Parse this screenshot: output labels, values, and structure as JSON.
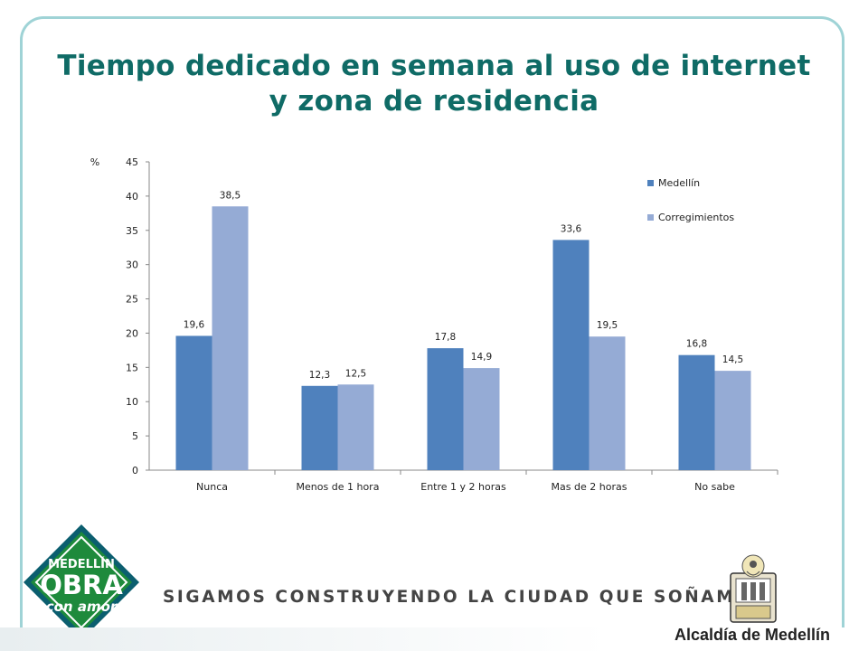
{
  "slide": {
    "title_line1": "Tiempo dedicado en semana al uso de internet",
    "title_line2": "y zona de residencia",
    "slogan": "SIGAMOS CONSTRUYENDO LA CIUDAD QUE SOÑAMOS",
    "logo_line1": "MEDELLÍN",
    "logo_line2": "OBRA",
    "logo_line3": "con amor",
    "alcaldia": "Alcaldía de Medellín"
  },
  "colors": {
    "title": "#0f6b66",
    "medellin": "#4f81bd",
    "corregimientos": "#95abd5",
    "logo_green": "#1e8a3c",
    "logo_dark": "#0b5e6f"
  },
  "chart_data": {
    "type": "bar",
    "ylabel": "%",
    "ylim": [
      0,
      45
    ],
    "yticks": [
      0,
      5,
      10,
      15,
      20,
      25,
      30,
      35,
      40,
      45
    ],
    "grid": false,
    "legend_position": "top-right",
    "categories": [
      "Nunca",
      "Menos de 1 hora",
      "Entre 1 y 2 horas",
      "Mas de 2 horas",
      "No sabe"
    ],
    "series": [
      {
        "name": "Medellín",
        "values": [
          19.6,
          12.3,
          17.8,
          33.6,
          16.8
        ],
        "labels": [
          "19,6",
          "12,3",
          "17,8",
          "33,6",
          "16,8"
        ]
      },
      {
        "name": "Corregimientos",
        "values": [
          38.5,
          12.5,
          14.9,
          19.5,
          14.5
        ],
        "labels": [
          "38,5",
          "12,5",
          "14,9",
          "19,5",
          "14,5"
        ]
      }
    ]
  }
}
